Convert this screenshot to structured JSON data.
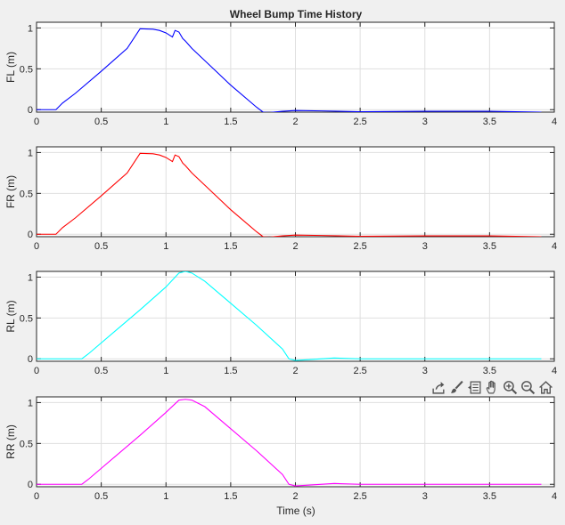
{
  "figure": {
    "title": "Wheel Bump Time History",
    "background": "#f0f0f0"
  },
  "toolbar": {
    "icons": [
      "export-icon",
      "brush-icon",
      "data-tips-icon",
      "pan-icon",
      "zoom-in-icon",
      "zoom-out-icon",
      "home-icon"
    ]
  },
  "chart_data": [
    {
      "type": "line",
      "title": "Wheel Bump Time History",
      "xlabel": "",
      "ylabel": "FL (m)",
      "xlim": [
        0,
        4
      ],
      "ylim": [
        -0.03,
        1.07
      ],
      "xticks": [
        "0",
        "0.5",
        "1",
        "1.5",
        "2",
        "2.5",
        "3",
        "3.5",
        "4"
      ],
      "yticks": [
        "0",
        "0.5",
        "1"
      ],
      "grid": true,
      "series": [
        {
          "color": "#0000ff",
          "x": [
            0,
            0.15,
            0.2,
            0.3,
            0.5,
            0.7,
            0.8,
            0.9,
            0.95,
            1.0,
            1.05,
            1.07,
            1.1,
            1.13,
            1.15,
            1.2,
            1.3,
            1.5,
            1.7,
            1.75,
            1.8,
            1.9,
            2.0,
            2.2,
            2.5,
            3.0,
            3.5,
            3.9
          ],
          "y": [
            0.0,
            0.0,
            0.08,
            0.2,
            0.47,
            0.75,
            0.99,
            0.985,
            0.97,
            0.94,
            0.89,
            0.97,
            0.95,
            0.87,
            0.84,
            0.75,
            0.6,
            0.3,
            0.03,
            -0.03,
            -0.035,
            -0.02,
            -0.01,
            -0.015,
            -0.025,
            -0.02,
            -0.02,
            -0.03
          ]
        }
      ]
    },
    {
      "type": "line",
      "xlabel": "",
      "ylabel": "FR (m)",
      "xlim": [
        0,
        4
      ],
      "ylim": [
        -0.03,
        1.07
      ],
      "xticks": [
        "0",
        "0.5",
        "1",
        "1.5",
        "2",
        "2.5",
        "3",
        "3.5",
        "4"
      ],
      "yticks": [
        "0",
        "0.5",
        "1"
      ],
      "grid": true,
      "series": [
        {
          "color": "#ff0000",
          "x": [
            0,
            0.15,
            0.2,
            0.3,
            0.5,
            0.7,
            0.8,
            0.9,
            0.95,
            1.0,
            1.05,
            1.07,
            1.1,
            1.13,
            1.15,
            1.2,
            1.3,
            1.5,
            1.7,
            1.75,
            1.8,
            1.9,
            2.0,
            2.2,
            2.5,
            3.0,
            3.5,
            3.9
          ],
          "y": [
            0.0,
            0.0,
            0.08,
            0.2,
            0.47,
            0.75,
            0.99,
            0.985,
            0.97,
            0.94,
            0.89,
            0.97,
            0.95,
            0.87,
            0.84,
            0.75,
            0.6,
            0.3,
            0.03,
            -0.03,
            -0.035,
            -0.02,
            -0.01,
            -0.015,
            -0.025,
            -0.02,
            -0.02,
            -0.03
          ]
        }
      ]
    },
    {
      "type": "line",
      "xlabel": "",
      "ylabel": "RL (m)",
      "xlim": [
        0,
        4
      ],
      "ylim": [
        -0.03,
        1.07
      ],
      "xticks": [
        "0",
        "0.5",
        "1",
        "1.5",
        "2",
        "2.5",
        "3",
        "3.5",
        "4"
      ],
      "yticks": [
        "0",
        "0.5",
        "1"
      ],
      "grid": true,
      "series": [
        {
          "color": "#00ffff",
          "x": [
            0,
            0.35,
            0.4,
            0.6,
            0.8,
            1.0,
            1.1,
            1.15,
            1.2,
            1.3,
            1.5,
            1.7,
            1.9,
            1.95,
            2.0,
            2.1,
            2.3,
            2.5,
            3.0,
            3.5,
            3.9
          ],
          "y": [
            0.0,
            0.0,
            0.06,
            0.33,
            0.6,
            0.88,
            1.05,
            1.07,
            1.05,
            0.95,
            0.68,
            0.41,
            0.12,
            0.0,
            -0.02,
            -0.01,
            0.01,
            0.0,
            0.0,
            0.0,
            0.0
          ]
        }
      ]
    },
    {
      "type": "line",
      "xlabel": "Time (s)",
      "ylabel": "RR (m)",
      "xlim": [
        0,
        4
      ],
      "ylim": [
        -0.03,
        1.07
      ],
      "xticks": [
        "0",
        "0.5",
        "1",
        "1.5",
        "2",
        "2.5",
        "3",
        "3.5",
        "4"
      ],
      "yticks": [
        "0",
        "0.5",
        "1"
      ],
      "grid": true,
      "series": [
        {
          "color": "#ff00ff",
          "x": [
            0,
            0.35,
            0.4,
            0.6,
            0.8,
            1.0,
            1.1,
            1.15,
            1.2,
            1.3,
            1.5,
            1.7,
            1.9,
            1.95,
            2.0,
            2.1,
            2.3,
            2.5,
            3.0,
            3.5,
            3.9
          ],
          "y": [
            0.0,
            0.0,
            0.06,
            0.33,
            0.6,
            0.88,
            1.03,
            1.04,
            1.03,
            0.95,
            0.68,
            0.41,
            0.12,
            0.0,
            -0.02,
            -0.01,
            0.01,
            0.0,
            0.0,
            0.0,
            0.0
          ]
        }
      ]
    }
  ]
}
